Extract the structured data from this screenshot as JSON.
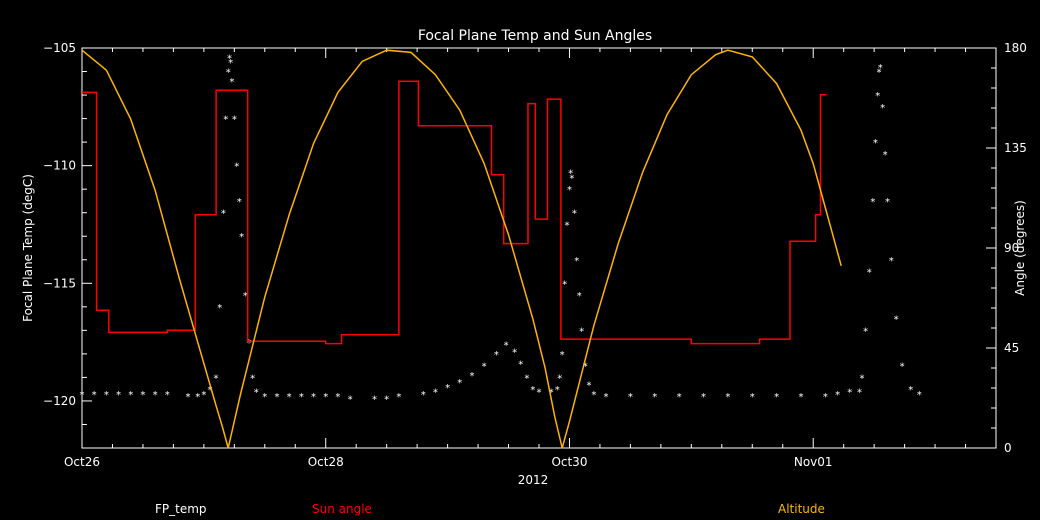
{
  "chart_data": {
    "type": "line",
    "title": "Focal Plane Temp and Sun Angles",
    "xlabel": "2012",
    "ylabel_left": "Focal Plane Temp (degC)",
    "ylabel_right": "Angle (degrees)",
    "x_tick_labels": [
      "Oct26",
      "Oct28",
      "Oct30",
      "Nov01"
    ],
    "x_ticks_day": [
      0,
      2,
      4,
      6
    ],
    "xlim_days": [
      0,
      7.5
    ],
    "ylim_left": [
      -122,
      -105
    ],
    "yticks_left": [
      -105,
      -110,
      -115,
      -120
    ],
    "ylim_right": [
      0,
      180
    ],
    "yticks_right": [
      0,
      45,
      90,
      135,
      180
    ],
    "grid": false,
    "colors": {
      "FP_temp": "#ffffff",
      "Sun angle": "#ff0000",
      "Altitude": "#ffb400",
      "axes": "#ffffff"
    },
    "series": [
      {
        "name": "FP_temp",
        "axis": "left",
        "style": "star-markers",
        "points": [
          [
            0.0,
            -119.7
          ],
          [
            0.1,
            -119.7
          ],
          [
            0.2,
            -119.7
          ],
          [
            0.3,
            -119.7
          ],
          [
            0.4,
            -119.7
          ],
          [
            0.5,
            -119.7
          ],
          [
            0.6,
            -119.7
          ],
          [
            0.7,
            -119.7
          ],
          [
            0.87,
            -119.8
          ],
          [
            0.95,
            -119.8
          ],
          [
            1.0,
            -119.7
          ],
          [
            1.05,
            -119.5
          ],
          [
            1.1,
            -119.0
          ],
          [
            1.13,
            -116.0
          ],
          [
            1.16,
            -112.0
          ],
          [
            1.18,
            -108.0
          ],
          [
            1.2,
            -106.0
          ],
          [
            1.21,
            -105.4
          ],
          [
            1.22,
            -105.6
          ],
          [
            1.23,
            -106.4
          ],
          [
            1.25,
            -108.0
          ],
          [
            1.27,
            -110.0
          ],
          [
            1.29,
            -111.5
          ],
          [
            1.31,
            -113.0
          ],
          [
            1.34,
            -115.5
          ],
          [
            1.37,
            -117.5
          ],
          [
            1.4,
            -119.0
          ],
          [
            1.43,
            -119.6
          ],
          [
            1.5,
            -119.8
          ],
          [
            1.6,
            -119.8
          ],
          [
            1.7,
            -119.8
          ],
          [
            1.8,
            -119.8
          ],
          [
            1.9,
            -119.8
          ],
          [
            2.0,
            -119.8
          ],
          [
            2.1,
            -119.8
          ],
          [
            2.2,
            -119.9
          ],
          [
            2.4,
            -119.9
          ],
          [
            2.5,
            -119.9
          ],
          [
            2.6,
            -119.8
          ],
          [
            2.8,
            -119.7
          ],
          [
            2.9,
            -119.6
          ],
          [
            3.0,
            -119.4
          ],
          [
            3.1,
            -119.2
          ],
          [
            3.2,
            -118.9
          ],
          [
            3.3,
            -118.5
          ],
          [
            3.4,
            -118.0
          ],
          [
            3.48,
            -117.6
          ],
          [
            3.55,
            -117.9
          ],
          [
            3.6,
            -118.4
          ],
          [
            3.65,
            -119.0
          ],
          [
            3.7,
            -119.5
          ],
          [
            3.75,
            -119.6
          ],
          [
            3.85,
            -119.6
          ],
          [
            3.9,
            -119.5
          ],
          [
            3.92,
            -119.0
          ],
          [
            3.94,
            -118.0
          ],
          [
            3.96,
            -115.0
          ],
          [
            3.98,
            -112.5
          ],
          [
            4.0,
            -111.0
          ],
          [
            4.01,
            -110.3
          ],
          [
            4.02,
            -110.5
          ],
          [
            4.04,
            -112.0
          ],
          [
            4.06,
            -114.0
          ],
          [
            4.08,
            -115.5
          ],
          [
            4.1,
            -117.0
          ],
          [
            4.13,
            -118.5
          ],
          [
            4.16,
            -119.3
          ],
          [
            4.2,
            -119.7
          ],
          [
            4.3,
            -119.8
          ],
          [
            4.5,
            -119.8
          ],
          [
            4.7,
            -119.8
          ],
          [
            4.9,
            -119.8
          ],
          [
            5.1,
            -119.8
          ],
          [
            5.3,
            -119.8
          ],
          [
            5.5,
            -119.8
          ],
          [
            5.7,
            -119.8
          ],
          [
            5.9,
            -119.8
          ],
          [
            6.1,
            -119.8
          ],
          [
            6.2,
            -119.7
          ],
          [
            6.3,
            -119.6
          ],
          [
            6.38,
            -119.6
          ],
          [
            6.4,
            -119.0
          ],
          [
            6.43,
            -117.0
          ],
          [
            6.46,
            -114.5
          ],
          [
            6.49,
            -111.5
          ],
          [
            6.51,
            -109.0
          ],
          [
            6.53,
            -107.0
          ],
          [
            6.54,
            -106.0
          ],
          [
            6.55,
            -105.8
          ],
          [
            6.57,
            -107.5
          ],
          [
            6.59,
            -109.5
          ],
          [
            6.61,
            -111.5
          ],
          [
            6.64,
            -114.0
          ],
          [
            6.68,
            -116.5
          ],
          [
            6.73,
            -118.5
          ],
          [
            6.8,
            -119.5
          ],
          [
            6.87,
            -119.7
          ]
        ]
      },
      {
        "name": "Sun angle",
        "axis": "right",
        "style": "step-line",
        "points": [
          [
            0.0,
            160
          ],
          [
            0.12,
            160
          ],
          [
            0.12,
            62
          ],
          [
            0.22,
            62
          ],
          [
            0.22,
            52
          ],
          [
            0.7,
            52
          ],
          [
            0.7,
            53
          ],
          [
            0.93,
            53
          ],
          [
            0.93,
            105
          ],
          [
            1.1,
            105
          ],
          [
            1.1,
            161
          ],
          [
            1.36,
            161
          ],
          [
            1.36,
            48
          ],
          [
            2.0,
            48
          ],
          [
            2.0,
            47
          ],
          [
            2.13,
            47
          ],
          [
            2.13,
            51
          ],
          [
            2.6,
            51
          ],
          [
            2.6,
            165
          ],
          [
            2.76,
            165
          ],
          [
            2.76,
            145
          ],
          [
            3.36,
            145
          ],
          [
            3.36,
            123
          ],
          [
            3.46,
            123
          ],
          [
            3.46,
            92
          ],
          [
            3.66,
            92
          ],
          [
            3.66,
            155
          ],
          [
            3.72,
            155
          ],
          [
            3.72,
            103
          ],
          [
            3.82,
            103
          ],
          [
            3.82,
            157
          ],
          [
            3.93,
            157
          ],
          [
            3.93,
            49
          ],
          [
            5.0,
            49
          ],
          [
            5.0,
            47
          ],
          [
            5.56,
            47
          ],
          [
            5.56,
            49
          ],
          [
            5.81,
            49
          ],
          [
            5.81,
            93
          ],
          [
            6.02,
            93
          ],
          [
            6.02,
            105
          ],
          [
            6.06,
            105
          ],
          [
            6.06,
            159
          ],
          [
            6.11,
            159
          ]
        ]
      },
      {
        "name": "Altitude",
        "axis": "right",
        "style": "line",
        "points": [
          [
            0.0,
            179
          ],
          [
            0.2,
            170
          ],
          [
            0.4,
            148
          ],
          [
            0.6,
            116
          ],
          [
            0.8,
            76
          ],
          [
            1.0,
            38
          ],
          [
            1.1,
            19
          ],
          [
            1.15,
            10
          ],
          [
            1.2,
            0
          ],
          [
            1.3,
            24
          ],
          [
            1.5,
            68
          ],
          [
            1.7,
            105
          ],
          [
            1.9,
            137
          ],
          [
            2.1,
            160
          ],
          [
            2.3,
            174
          ],
          [
            2.5,
            179
          ],
          [
            2.7,
            178
          ],
          [
            2.9,
            168
          ],
          [
            3.1,
            152
          ],
          [
            3.3,
            128
          ],
          [
            3.5,
            96
          ],
          [
            3.7,
            58
          ],
          [
            3.8,
            36
          ],
          [
            3.88,
            14
          ],
          [
            3.94,
            0
          ],
          [
            4.0,
            12
          ],
          [
            4.2,
            55
          ],
          [
            4.4,
            92
          ],
          [
            4.6,
            124
          ],
          [
            4.8,
            150
          ],
          [
            5.0,
            168
          ],
          [
            5.2,
            177
          ],
          [
            5.3,
            179
          ],
          [
            5.5,
            176
          ],
          [
            5.7,
            164
          ],
          [
            5.9,
            143
          ],
          [
            6.0,
            128
          ],
          [
            6.1,
            108
          ],
          [
            6.15,
            98
          ],
          [
            6.23,
            82
          ]
        ]
      }
    ]
  },
  "legend": {
    "fp_temp": "FP_temp",
    "sun_angle": "Sun angle",
    "altitude": "Altitude"
  }
}
